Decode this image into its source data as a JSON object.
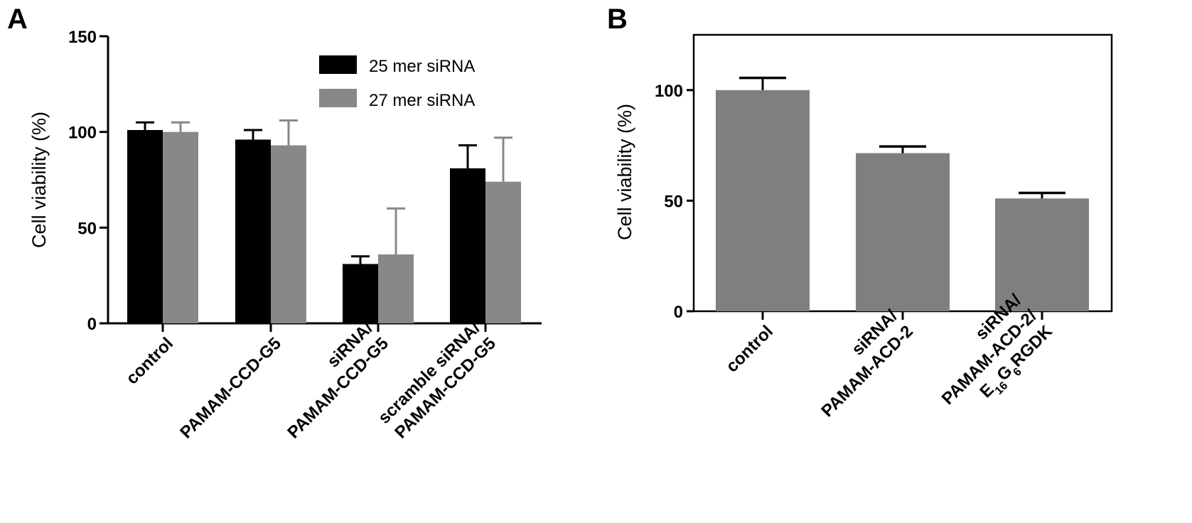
{
  "chart_data": [
    {
      "panel": "A",
      "type": "bar",
      "title": "",
      "xlabel": "",
      "ylabel": "Cell viability (%)",
      "ylim": [
        0,
        150
      ],
      "yticks": [
        0,
        50,
        100,
        150
      ],
      "categories": [
        [
          "control"
        ],
        [
          "PAMAM-CCD-G5"
        ],
        [
          "siRNA/",
          "PAMAM-CCD-G5"
        ],
        [
          "scramble siRNA/",
          "PAMAM-CCD-G5"
        ]
      ],
      "legend_position": "top-right",
      "series": [
        {
          "name": "25 mer siRNA",
          "color": "#000000",
          "values": [
            101,
            96,
            31,
            81
          ],
          "errors": [
            4,
            5,
            4,
            12
          ]
        },
        {
          "name": "27 mer siRNA",
          "color": "#888888",
          "values": [
            100,
            93,
            36,
            74
          ],
          "errors": [
            5,
            13,
            24,
            23
          ]
        }
      ]
    },
    {
      "panel": "B",
      "type": "bar",
      "title": "",
      "xlabel": "",
      "ylabel": "Cell viability (%)",
      "ylim": [
        0,
        125
      ],
      "yticks": [
        0,
        50,
        100
      ],
      "categories": [
        [
          "control"
        ],
        [
          "siRNA/",
          "PAMAM-ACD-2"
        ],
        [
          "siRNA/",
          "PAMAM-ACD-2/",
          "E16G6RGDK"
        ]
      ],
      "series": [
        {
          "name": "",
          "color": "#7f7f7f",
          "values": [
            100,
            71.5,
            51
          ],
          "errors": [
            5.5,
            3,
            2.5
          ]
        }
      ]
    }
  ]
}
